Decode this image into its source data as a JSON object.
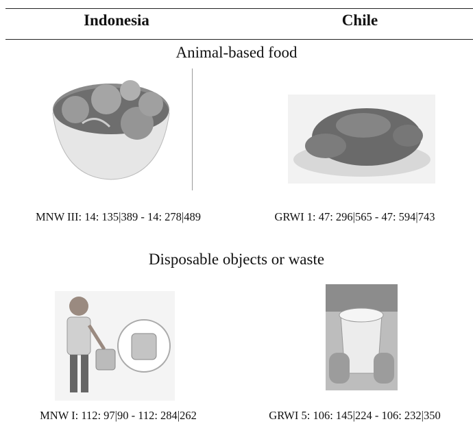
{
  "header": {
    "columns": [
      "Indonesia",
      "Chile"
    ]
  },
  "sections": [
    {
      "title": "Animal-based food",
      "items": [
        {
          "caption": "MNW III: 14: 135|389 - 14: 278|489"
        },
        {
          "caption": "GRWI 1: 47: 296|565 - 47: 594|743"
        }
      ]
    },
    {
      "title": "Disposable objects or waste",
      "items": [
        {
          "caption": "MNW I: 112: 97|90 - 112: 284|262"
        },
        {
          "caption": "GRWI 5: 106: 145|224 - 106: 232|350"
        }
      ]
    }
  ]
}
